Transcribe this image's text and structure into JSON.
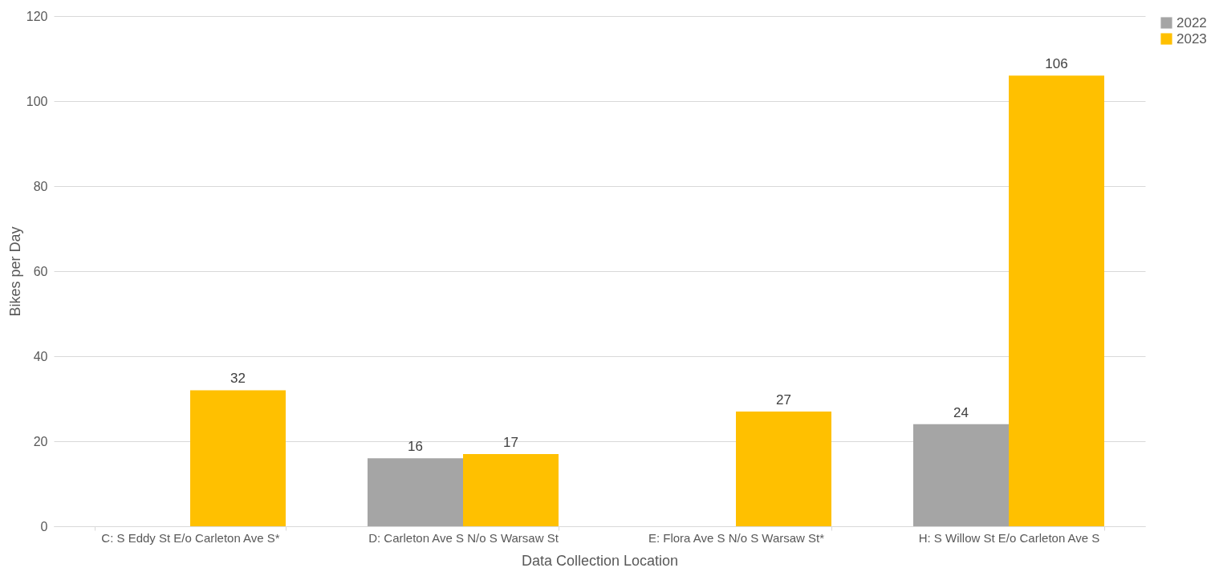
{
  "chart_data": {
    "type": "bar",
    "xlabel": "Data Collection Location",
    "ylabel": "Bikes per Day",
    "categories": [
      "C: S Eddy St E/o Carleton Ave S*",
      "D: Carleton Ave S N/o S Warsaw St",
      "E: Flora Ave S N/o S Warsaw St*",
      "H: S Willow St E/o Carleton Ave S"
    ],
    "series": [
      {
        "name": "2022",
        "color": "#a5a5a5",
        "values": [
          null,
          16,
          null,
          24
        ]
      },
      {
        "name": "2023",
        "color": "#ffc000",
        "values": [
          32,
          17,
          27,
          106
        ]
      }
    ],
    "ylim": [
      0,
      120
    ],
    "yticks": [
      0,
      20,
      40,
      60,
      80,
      100,
      120
    ],
    "grid": "y",
    "legend": "right",
    "data_labels": true
  }
}
